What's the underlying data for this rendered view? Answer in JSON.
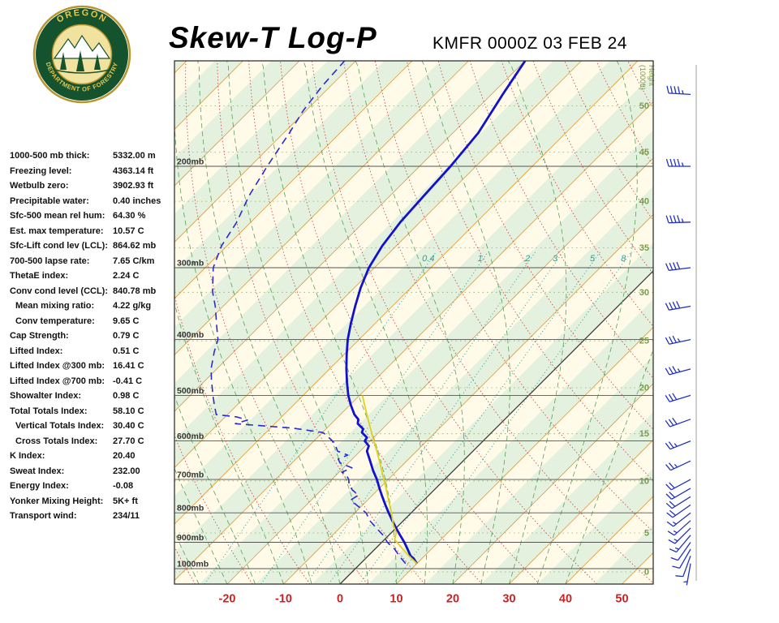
{
  "header": {
    "title": "Skew-T Log-P",
    "station_line": "KMFR 0000Z 03 FEB 24"
  },
  "logo": {
    "top_text": "OREGON",
    "bottom_text": "DEPARTMENT OF FORESTRY"
  },
  "stats": [
    {
      "label": "1000-500 mb thick:",
      "value": "5332.00 m",
      "indent": false
    },
    {
      "label": "Freezing level:",
      "value": "4363.14 ft",
      "indent": false
    },
    {
      "label": "Wetbulb zero:",
      "value": "3902.93 ft",
      "indent": false
    },
    {
      "label": "Precipitable water:",
      "value": "0.40 inches",
      "indent": false
    },
    {
      "label": "Sfc-500 mean rel hum:",
      "value": "64.30 %",
      "indent": false
    },
    {
      "label": "Est. max temperature:",
      "value": "10.57 C",
      "indent": false
    },
    {
      "label": "Sfc-Lift cond lev (LCL):",
      "value": "864.62 mb",
      "indent": false
    },
    {
      "label": "700-500 lapse rate:",
      "value": "7.65 C/km",
      "indent": false
    },
    {
      "label": "ThetaE index:",
      "value": "2.24 C",
      "indent": false
    },
    {
      "label": "Conv cond level (CCL):",
      "value": "840.78 mb",
      "indent": false
    },
    {
      "label": "Mean mixing ratio:",
      "value": "4.22 g/kg",
      "indent": true
    },
    {
      "label": "Conv temperature:",
      "value": "9.65 C",
      "indent": true
    },
    {
      "label": "Cap Strength:",
      "value": "0.79 C",
      "indent": false
    },
    {
      "label": "Lifted Index:",
      "value": "0.51 C",
      "indent": false
    },
    {
      "label": "Lifted Index @300 mb:",
      "value": "16.41 C",
      "indent": false
    },
    {
      "label": "Lifted Index @700 mb:",
      "value": "-0.41 C",
      "indent": false
    },
    {
      "label": "Showalter Index:",
      "value": "0.98 C",
      "indent": false
    },
    {
      "label": "Total Totals Index:",
      "value": "58.10 C",
      "indent": false
    },
    {
      "label": "Vertical Totals Index:",
      "value": "30.40 C",
      "indent": true
    },
    {
      "label": "Cross Totals Index:",
      "value": "27.70 C",
      "indent": true
    },
    {
      "label": "K Index:",
      "value": "20.40",
      "indent": false
    },
    {
      "label": "Sweat Index:",
      "value": "232.00",
      "indent": false
    },
    {
      "label": "Energy Index:",
      "value": "-0.08",
      "indent": false
    },
    {
      "label": "Yonker Mixing Height:",
      "value": "5K+ ft",
      "indent": false
    },
    {
      "label": "Transport wind:",
      "value": "234/11",
      "indent": false
    }
  ],
  "chart_data": {
    "type": "line",
    "title": "Skew-T Log-P",
    "station": "KMFR 0000Z 03 FEB 24",
    "x_axis": {
      "ticks": [
        -20,
        -10,
        0,
        10,
        20,
        30,
        40,
        50
      ],
      "unit": "C"
    },
    "y_axis": {
      "pressure_levels_mb": [
        200,
        300,
        400,
        500,
        600,
        700,
        800,
        900,
        1000
      ],
      "label_suffix": "mb",
      "range_mb": [
        131,
        1064
      ]
    },
    "height_scale": {
      "title_line1": "Height",
      "title_line2": "(1000ft)",
      "labels": [
        "50",
        "45",
        "40",
        "35",
        "30",
        "25",
        "20",
        "15",
        "10",
        "5",
        "0"
      ],
      "pressures_mb": [
        157,
        189,
        230,
        277,
        331,
        402,
        485,
        583,
        704,
        867,
        1013
      ]
    },
    "mixing_ratio_lines": {
      "labels": [
        "0.4",
        "1",
        "2",
        "3",
        "5",
        "8"
      ],
      "t_at_bottom": [
        -24,
        -14,
        -6,
        -2,
        3.5,
        9.5
      ],
      "t_at_top": [
        -41.9,
        -32.7,
        -24.3,
        -19.4,
        -12.8,
        -7.3
      ]
    },
    "series": [
      {
        "name": "temperature",
        "color": "#1212cc",
        "style": "solid",
        "width": 2.8,
        "points_p_t": [
          [
            980,
            10
          ],
          [
            960,
            8.5
          ],
          [
            950,
            7.5
          ],
          [
            925,
            5.8
          ],
          [
            900,
            4
          ],
          [
            875,
            2
          ],
          [
            850,
            0
          ],
          [
            825,
            -2
          ],
          [
            800,
            -4
          ],
          [
            775,
            -6
          ],
          [
            750,
            -8
          ],
          [
            725,
            -10
          ],
          [
            700,
            -12
          ],
          [
            675,
            -14.3
          ],
          [
            650,
            -16.5
          ],
          [
            625,
            -18.8
          ],
          [
            612,
            -19.4
          ],
          [
            600,
            -21
          ],
          [
            592,
            -21.2
          ],
          [
            580,
            -23
          ],
          [
            572,
            -23.4
          ],
          [
            560,
            -25.3
          ],
          [
            550,
            -26
          ],
          [
            540,
            -27.5
          ],
          [
            520,
            -29.8
          ],
          [
            500,
            -32
          ],
          [
            475,
            -34.5
          ],
          [
            450,
            -37
          ],
          [
            425,
            -39.5
          ],
          [
            400,
            -42
          ],
          [
            375,
            -44.3
          ],
          [
            350,
            -46.6
          ],
          [
            325,
            -48.9
          ],
          [
            300,
            -51
          ],
          [
            275,
            -52.5
          ],
          [
            250,
            -53.5
          ],
          [
            225,
            -54
          ],
          [
            200,
            -54.5
          ],
          [
            175,
            -55.5
          ],
          [
            150,
            -58
          ],
          [
            131,
            -60
          ]
        ]
      },
      {
        "name": "dewpoint",
        "color": "#2a2ad0",
        "style": "dashed",
        "width": 1.6,
        "points_p_t": [
          [
            980,
            8
          ],
          [
            950,
            5.5
          ],
          [
            925,
            3.5
          ],
          [
            900,
            1
          ],
          [
            875,
            -1
          ],
          [
            850,
            -3.5
          ],
          [
            825,
            -6
          ],
          [
            800,
            -8
          ],
          [
            780,
            -10.5
          ],
          [
            760,
            -13
          ],
          [
            745,
            -12.5
          ],
          [
            730,
            -14.5
          ],
          [
            715,
            -16
          ],
          [
            700,
            -17
          ],
          [
            690,
            -18
          ],
          [
            680,
            -19.5
          ],
          [
            668,
            -18.5
          ],
          [
            655,
            -21.5
          ],
          [
            645,
            -22.5
          ],
          [
            635,
            -21.5
          ],
          [
            625,
            -24
          ],
          [
            615,
            -25
          ],
          [
            605,
            -26
          ],
          [
            595,
            -27.5
          ],
          [
            585,
            -29
          ],
          [
            580,
            -30
          ],
          [
            570,
            -36
          ],
          [
            560,
            -47
          ],
          [
            552,
            -45.5
          ],
          [
            545,
            -48
          ],
          [
            540,
            -52
          ],
          [
            520,
            -54
          ],
          [
            500,
            -56
          ],
          [
            470,
            -59
          ],
          [
            450,
            -61
          ],
          [
            420,
            -63.5
          ],
          [
            400,
            -65
          ],
          [
            380,
            -67.5
          ],
          [
            350,
            -71.4
          ],
          [
            330,
            -74.5
          ],
          [
            300,
            -78.6
          ],
          [
            275,
            -81
          ],
          [
            250,
            -82.5
          ],
          [
            225,
            -85
          ],
          [
            200,
            -87
          ],
          [
            175,
            -89
          ],
          [
            160,
            -90.5
          ],
          [
            145,
            -91.5
          ],
          [
            131,
            -92
          ]
        ]
      },
      {
        "name": "parcel",
        "color": "#e3cf1e",
        "style": "solid",
        "width": 1.8,
        "points_p_t": [
          [
            980,
            10
          ],
          [
            950,
            7.2
          ],
          [
            920,
            4.5
          ],
          [
            890,
            1.8
          ],
          [
            865,
            0.8
          ],
          [
            840,
            -1
          ],
          [
            800,
            -3.5
          ],
          [
            760,
            -6.3
          ],
          [
            720,
            -9.2
          ],
          [
            700,
            -10.8
          ],
          [
            660,
            -14
          ],
          [
            620,
            -17.5
          ],
          [
            580,
            -21.3
          ],
          [
            540,
            -25.3
          ],
          [
            500,
            -29.5
          ]
        ]
      }
    ],
    "winds": {
      "barb_color": "#2233bb",
      "levels_p_dir_spd": [
        [
          980,
          190,
          5
        ],
        [
          950,
          200,
          10
        ],
        [
          925,
          210,
          10
        ],
        [
          900,
          215,
          10
        ],
        [
          875,
          220,
          15
        ],
        [
          850,
          225,
          15
        ],
        [
          825,
          228,
          15
        ],
        [
          800,
          232,
          15
        ],
        [
          775,
          235,
          20
        ],
        [
          750,
          238,
          20
        ],
        [
          725,
          240,
          20
        ],
        [
          700,
          242,
          20
        ],
        [
          650,
          245,
          25
        ],
        [
          600,
          248,
          25
        ],
        [
          550,
          250,
          30
        ],
        [
          500,
          253,
          30
        ],
        [
          450,
          255,
          35
        ],
        [
          400,
          258,
          35
        ],
        [
          350,
          260,
          40
        ],
        [
          300,
          263,
          40
        ],
        [
          250,
          268,
          45
        ],
        [
          200,
          270,
          45
        ],
        [
          150,
          273,
          45
        ]
      ]
    },
    "colors": {
      "chart_bg": "#fffbe8",
      "band_green": "#e4f1df",
      "isotherm": "#e09a3c",
      "zero_isotherm": "#3a3a3a",
      "dry_adiabat": "#c24040",
      "moist_adiabat": "#58a058",
      "mixing_ratio": "#2aa098",
      "pressure_line": "#555555",
      "height_line": "#8fae6d",
      "height_label": "#7a9a50",
      "axis_label": "#cc2020",
      "pressure_label": "#333333",
      "wind_axis": "#888888"
    }
  }
}
